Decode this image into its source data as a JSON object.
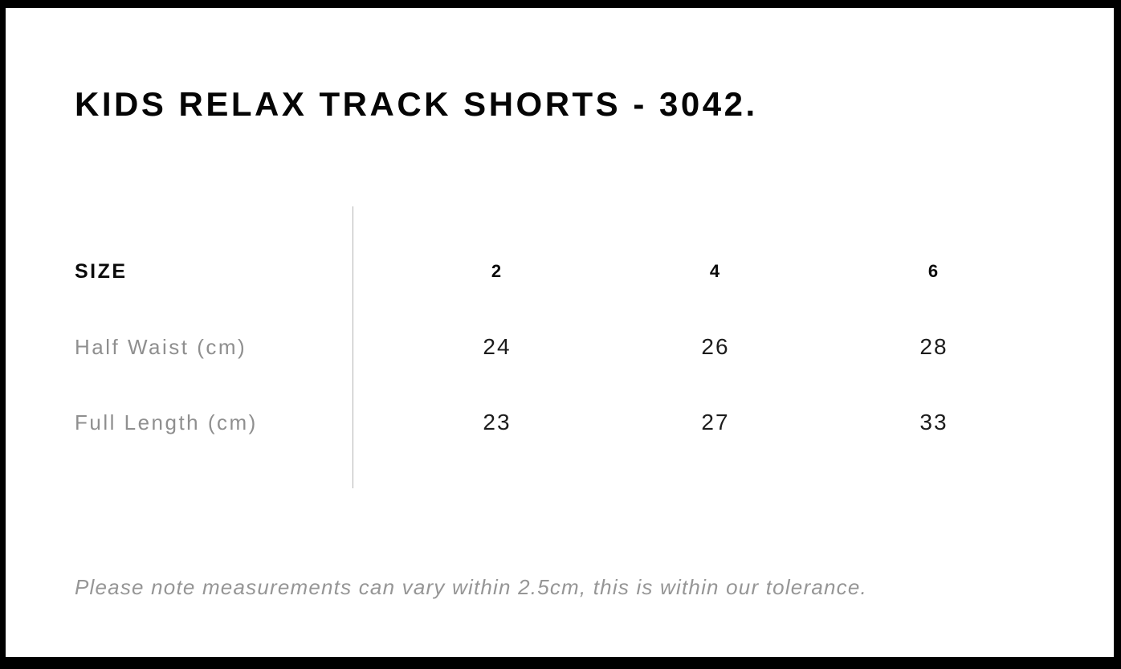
{
  "page": {
    "title": "KIDS RELAX TRACK SHORTS - 3042.",
    "note": "Please note measurements can vary within 2.5cm, this is within our tolerance."
  },
  "size_chart": {
    "header_label": "SIZE",
    "sizes": [
      "2",
      "4",
      "6"
    ],
    "rows": [
      {
        "label": "Half Waist (cm)",
        "values": [
          "24",
          "26",
          "28"
        ]
      },
      {
        "label": "Full Length (cm)",
        "values": [
          "23",
          "27",
          "33"
        ]
      }
    ]
  },
  "colors": {
    "frame": "#000000",
    "background": "#ffffff",
    "heading_text": "#050505",
    "muted_label": "#8f8f8f",
    "value_text": "#1c1c1c",
    "divider": "#b3b3b3",
    "note_text": "#969696"
  }
}
